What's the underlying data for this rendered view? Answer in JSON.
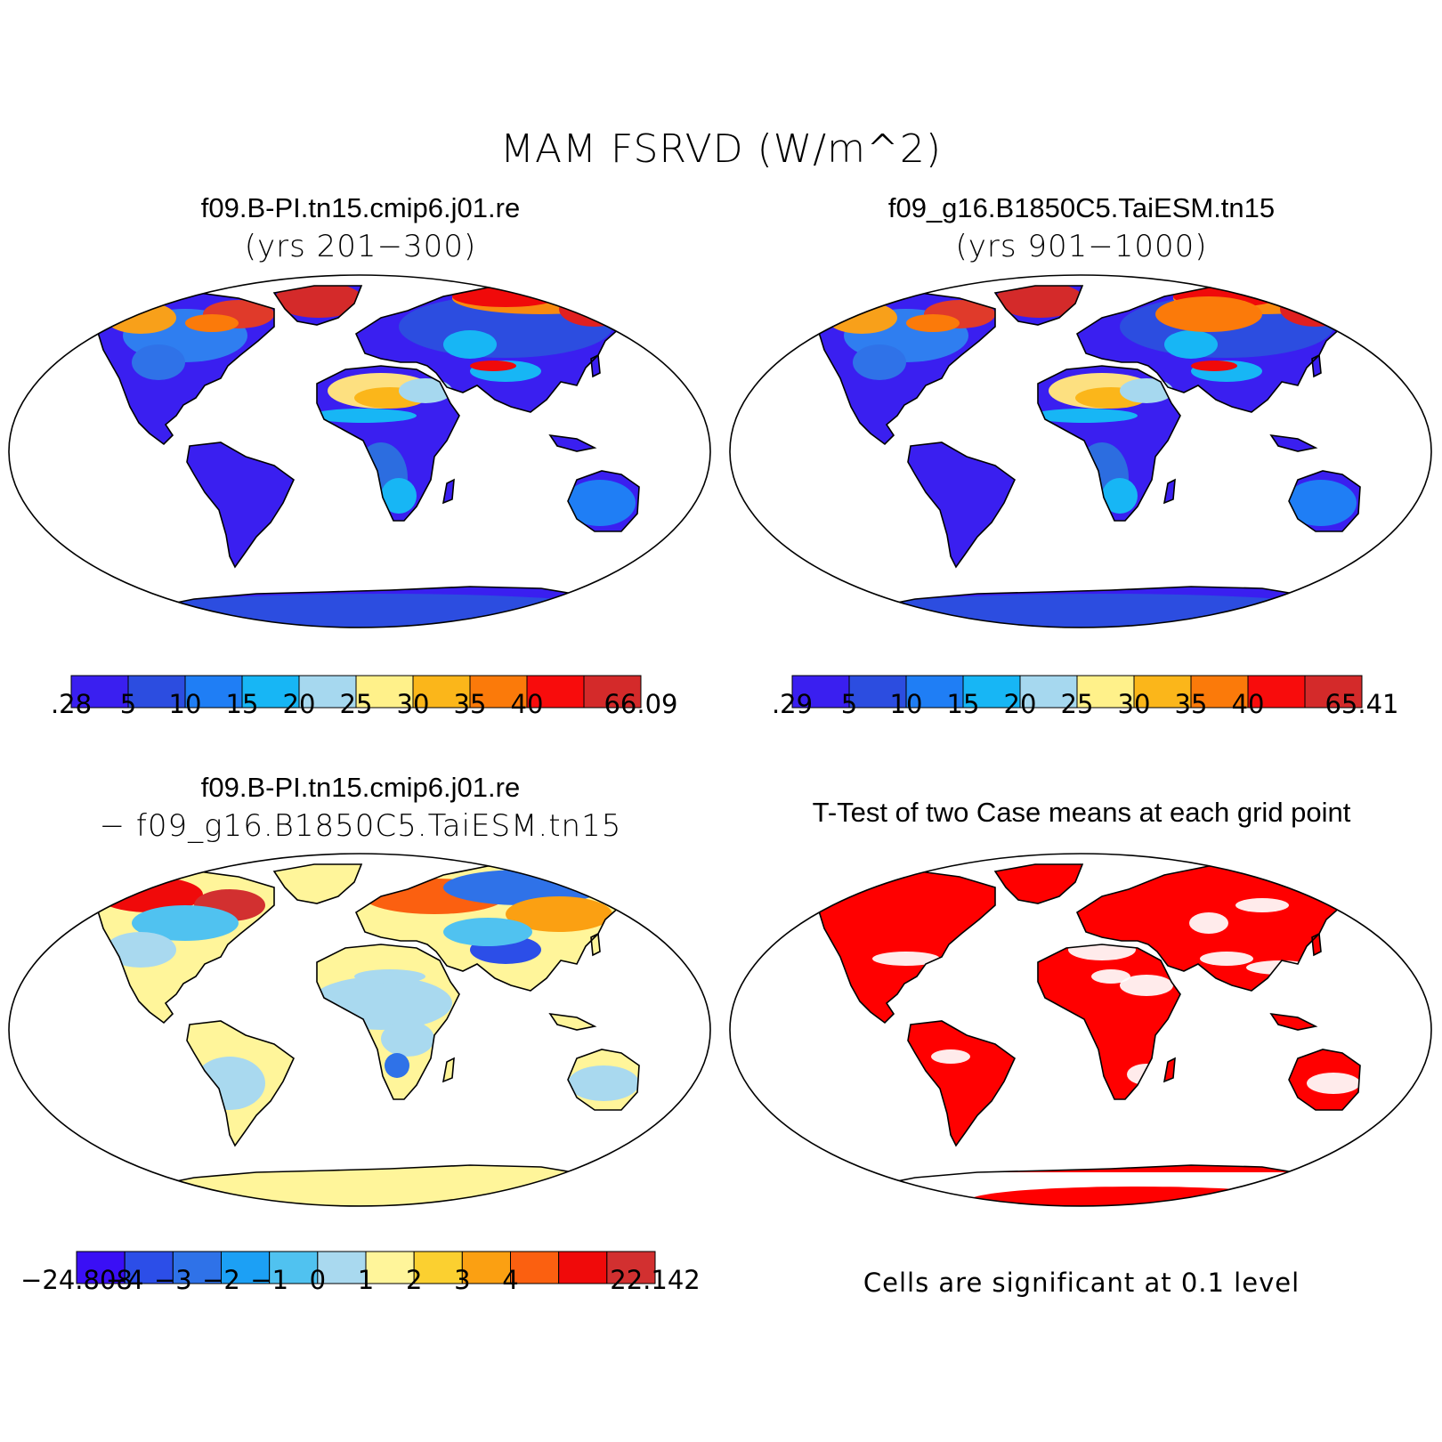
{
  "title": "MAM FSRVD (W/m^2)",
  "panels": [
    {
      "id": "case1",
      "title": "f09.B-PI.tn15.cmip6.j01.re",
      "subtitle": "(yrs 201−300)",
      "colorbar": {
        "colors": [
          "#3a1ff0",
          "#2c4de0",
          "#1f7ef5",
          "#17b6f5",
          "#a6d8ef",
          "#fff18a",
          "#fbb61a",
          "#fb7a0a",
          "#f80c0c",
          "#d42a2a"
        ],
        "labels": [
          ".28",
          "5",
          "10",
          "15",
          "20",
          "25",
          "30",
          "35",
          "40",
          "66.09"
        ]
      }
    },
    {
      "id": "case2",
      "title": "f09_g16.B1850C5.TaiESM.tn15",
      "subtitle": "(yrs 901−1000)",
      "colorbar": {
        "colors": [
          "#3a1ff0",
          "#2c4de0",
          "#1f7ef5",
          "#17b6f5",
          "#a6d8ef",
          "#fff18a",
          "#fbb61a",
          "#fb7a0a",
          "#f80c0c",
          "#d42a2a"
        ],
        "labels": [
          ".29",
          "5",
          "10",
          "15",
          "20",
          "25",
          "30",
          "35",
          "40",
          "65.41"
        ]
      }
    },
    {
      "id": "diff",
      "title": "f09.B-PI.tn15.cmip6.j01.re",
      "subtitle": "− f09_g16.B1850C5.TaiESM.tn15",
      "colorbar": {
        "colors": [
          "#3a0ff5",
          "#2c4ee8",
          "#2f72e8",
          "#1ca0f5",
          "#50c2f0",
          "#a9d9ef",
          "#fff59a",
          "#fbd030",
          "#fba012",
          "#fb6010",
          "#f00a0a",
          "#d23030"
        ],
        "labels": [
          "−24.808",
          "−4",
          "−3",
          "−2",
          "−1",
          "0",
          "1",
          "2",
          "3",
          "4",
          "22.142"
        ]
      }
    },
    {
      "id": "ttest",
      "title": "T-Test of two Case means at each grid point",
      "note": "Cells are significant at 0.1 level"
    }
  ],
  "colors": {
    "land_low": "#3a1ff0",
    "diff_neutral": "#fff59a",
    "significant": "#ff0000"
  }
}
